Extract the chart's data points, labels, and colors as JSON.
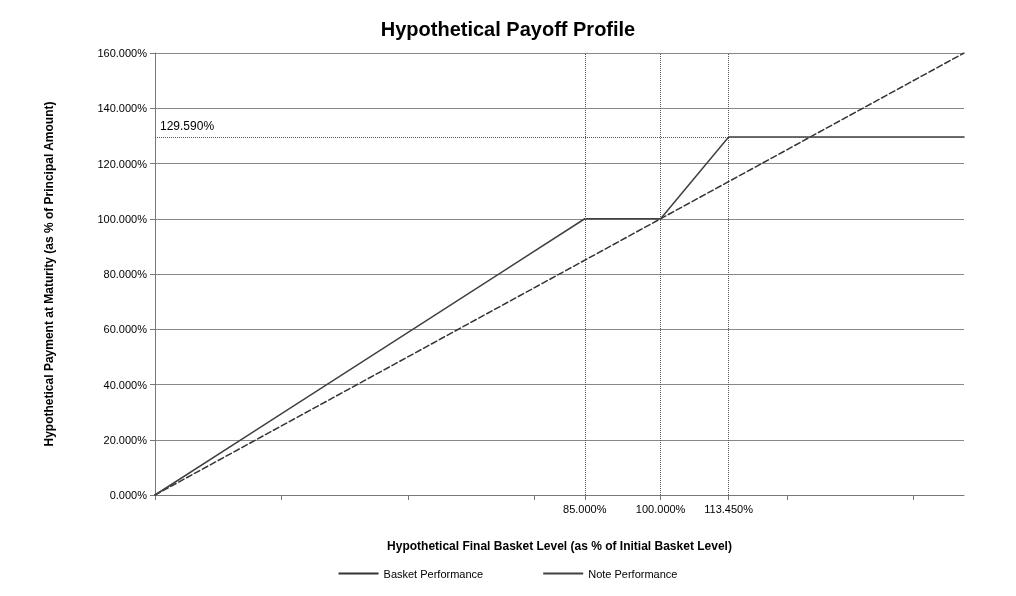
{
  "chart_data": {
    "type": "line",
    "title": "Hypothetical Payoff Profile",
    "xlabel": "Hypothetical Final Basket Level (as % of Initial Basket Level)",
    "ylabel": "Hypothetical Payment at Maturity (as % of Principal Amount)",
    "series": [
      {
        "name": "Basket Performance",
        "color": "#333333",
        "line_style": "dashed",
        "x": [
          0,
          160
        ],
        "values": [
          0,
          160
        ]
      },
      {
        "name": "Note Performance",
        "color": "#404040",
        "line_style": "solid",
        "x": [
          0,
          85,
          100,
          113.45,
          160
        ],
        "values": [
          0,
          100,
          100,
          129.59,
          129.59
        ]
      }
    ],
    "xlim": [
      0,
      160
    ],
    "xticks": [
      {
        "value": 0,
        "label": null
      },
      {
        "value": 25,
        "label": null
      },
      {
        "value": 50,
        "label": null
      },
      {
        "value": 75,
        "label": null
      },
      {
        "value": 85,
        "label": "85.000%"
      },
      {
        "value": 100,
        "label": "100.000%"
      },
      {
        "value": 113.45,
        "label": "113.450%"
      },
      {
        "value": 125,
        "label": null
      },
      {
        "value": 150,
        "label": null
      }
    ],
    "ylim": [
      0,
      160
    ],
    "yticks": [
      {
        "value": 0,
        "label": "0.000%"
      },
      {
        "value": 20,
        "label": "20.000%"
      },
      {
        "value": 40,
        "label": "40.000%"
      },
      {
        "value": 60,
        "label": "60.000%"
      },
      {
        "value": 80,
        "label": "80.000%"
      },
      {
        "value": 100,
        "label": "100.000%"
      },
      {
        "value": 120,
        "label": "120.000%"
      },
      {
        "value": 140,
        "label": "140.000%"
      },
      {
        "value": 160,
        "label": "160.000%"
      }
    ],
    "ref_lines": [
      {
        "axis": "x",
        "value": 85,
        "label": null,
        "color": "#555555",
        "line_style": "dotted"
      },
      {
        "axis": "x",
        "value": 100,
        "label": null,
        "color": "#555555",
        "line_style": "dotted"
      },
      {
        "axis": "x",
        "value": 113.45,
        "label": null,
        "color": "#555555",
        "line_style": "dotted"
      },
      {
        "axis": "y",
        "value": 129.59,
        "label": "129.590%",
        "color": "#555555",
        "line_style": "dotted"
      }
    ],
    "grid": "y",
    "legend": "bottom",
    "marker": "none"
  }
}
